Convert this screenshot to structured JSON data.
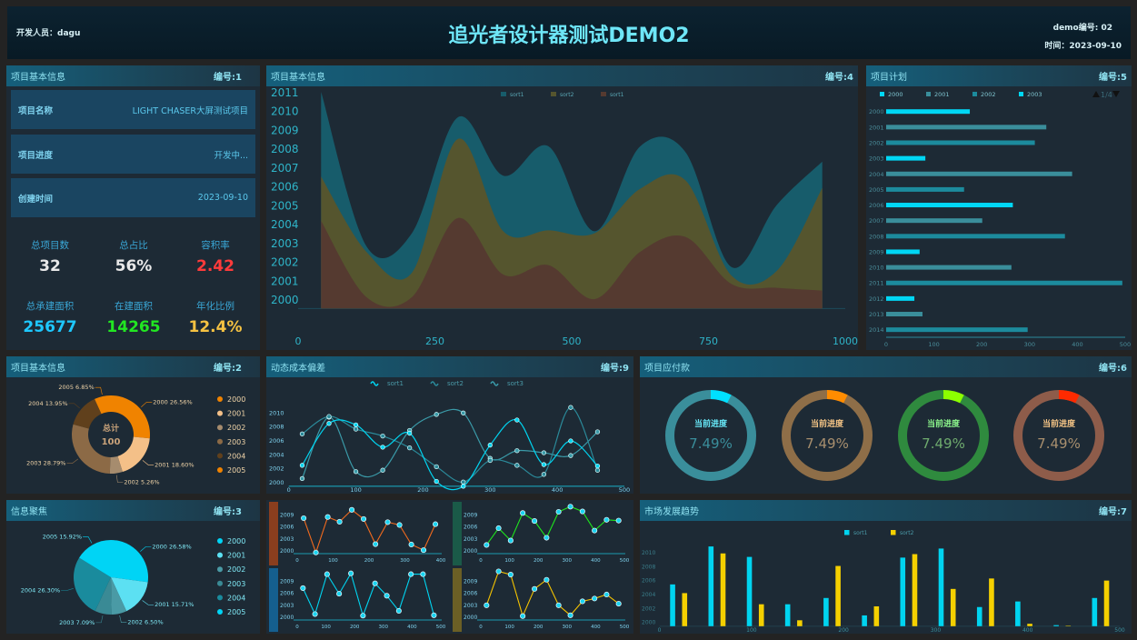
{
  "header": {
    "developer": "开发人员：dagu",
    "title": "追光者设计器测试DEMO2",
    "demo_no": "demo编号: 02",
    "time": "时间：2023-09-10"
  },
  "panels": {
    "p1": {
      "title": "项目基本信息",
      "no": "编号:1"
    },
    "p4": {
      "title": "项目基本信息",
      "no": "编号:4"
    },
    "p5": {
      "title": "项目计划",
      "no": "编号:5"
    },
    "p2": {
      "title": "项目基本信息",
      "no": "编号:2"
    },
    "p9": {
      "title": "动态成本偏差",
      "no": "编号:9"
    },
    "p6": {
      "title": "项目应付款",
      "no": "编号:6"
    },
    "p3": {
      "title": "信息聚焦",
      "no": "编号:3"
    },
    "p7": {
      "title": "市场发展趋势",
      "no": "编号:7"
    }
  },
  "info_rows": [
    {
      "label": "项目名称",
      "value": "LIGHT CHASER大屏测试项目"
    },
    {
      "label": "项目进度",
      "value": "开发中..."
    },
    {
      "label": "创建时间",
      "value": "2023-09-10"
    }
  ],
  "stats": [
    {
      "label": "总项目数",
      "value": "32",
      "color": "#e8e8e8"
    },
    {
      "label": "总占比",
      "value": "56%",
      "color": "#e8e8e8"
    },
    {
      "label": "容积率",
      "value": "2.42",
      "color": "#ff3b3b"
    },
    {
      "label": "总承建面积",
      "value": "25677",
      "color": "#1ec8ff"
    },
    {
      "label": "在建面积",
      "value": "14265",
      "color": "#22e622"
    },
    {
      "label": "年化比例",
      "value": "12.4%",
      "color": "#f5c242"
    }
  ],
  "chart_data": [
    {
      "id": "area",
      "type": "area",
      "xlim": [
        0,
        1000
      ],
      "ylim": [
        1999.5,
        2011
      ],
      "x_ticks": [
        0,
        250,
        500,
        750,
        1000
      ],
      "y_ticks": [
        2000,
        2001,
        2002,
        2003,
        2004,
        2005,
        2006,
        2007,
        2008,
        2009,
        2010,
        2011
      ],
      "x": [
        42,
        125,
        208,
        292,
        375,
        458,
        542,
        625,
        708,
        792,
        875,
        958
      ],
      "legend": "top",
      "series": [
        {
          "name": "sort1",
          "color": "#175c6b",
          "values": [
            2011,
            2002.8,
            2003.5,
            2009.65,
            2006.55,
            2008.1,
            2003.6,
            2008.1,
            2007.8,
            2001.7,
            2005,
            2007.3
          ]
        },
        {
          "name": "sort2",
          "color": "#55552e",
          "values": [
            2006.5,
            2002.5,
            2001.4,
            2008.5,
            2003.6,
            2003.65,
            2003.5,
            2005.85,
            2006.3,
            2001.25,
            2001.5,
            2005.9
          ]
        },
        {
          "name": "sort1",
          "color": "#553a30",
          "values": [
            2004.15,
            2000.1,
            2000.1,
            2004.3,
            2001.3,
            2001.8,
            2000,
            2002.5,
            2003.3,
            2000.8,
            2000.6,
            2000.45
          ]
        }
      ]
    },
    {
      "id": "hbar",
      "type": "bar",
      "orientation": "horizontal",
      "xlim": [
        0,
        500
      ],
      "x_ticks": [
        0,
        100,
        200,
        300,
        400,
        500
      ],
      "categories": [
        "2000",
        "2001",
        "2002",
        "2003",
        "2004",
        "2005",
        "2006",
        "2007",
        "2008",
        "2009",
        "2010",
        "2011",
        "2012",
        "2013",
        "2014"
      ],
      "values": [
        175,
        335,
        311,
        82,
        389,
        163,
        265,
        201,
        374,
        70,
        262,
        494,
        59,
        76,
        296
      ],
      "colors": [
        "#00d7f5",
        "#3a8e9b",
        "#1c8b9d"
      ],
      "legend": [
        "2000",
        "2001",
        "2002",
        "2003"
      ],
      "pager": "1/4"
    },
    {
      "id": "donut",
      "type": "pie",
      "center_title": "总计",
      "center_value": "100",
      "slices": [
        {
          "label": "2000",
          "value": 26.56,
          "text": "2000 26.56%",
          "color": "#f08300"
        },
        {
          "label": "2001",
          "value": 18.6,
          "text": "2001 18.60%",
          "color": "#f4c088"
        },
        {
          "label": "2002",
          "value": 5.26,
          "text": "2002 5.26%",
          "color": "#a68c6e"
        },
        {
          "label": "2003",
          "value": 28.79,
          "text": "2003 28.79%",
          "color": "#8c6a46"
        },
        {
          "label": "2004",
          "value": 13.95,
          "text": "2004 13.95%",
          "color": "#60401c"
        },
        {
          "label": "2005",
          "value": 6.85,
          "text": "2005 6.85%",
          "color": "#f08300"
        }
      ]
    },
    {
      "id": "pie",
      "type": "pie",
      "slices": [
        {
          "label": "2000",
          "value": 26.58,
          "text": "2000 26.58%",
          "color": "#00d4f5"
        },
        {
          "label": "2001",
          "value": 15.71,
          "text": "2001 15.71%",
          "color": "#5ce0f2"
        },
        {
          "label": "2002",
          "value": 6.5,
          "text": "2002 6.50%",
          "color": "#4a9aa5"
        },
        {
          "label": "2003",
          "value": 7.09,
          "text": "2003 7.09%",
          "color": "#3a8a95"
        },
        {
          "label": "2004",
          "value": 26.3,
          "text": "2004 26.30%",
          "color": "#1a8b9d"
        },
        {
          "label": "2005",
          "value": 15.92,
          "text": "2005 15.92%",
          "color": "#00d4f5"
        }
      ]
    },
    {
      "id": "smooth",
      "type": "line",
      "smooth": true,
      "xlim": [
        0,
        500
      ],
      "ylim": [
        1999.5,
        2010
      ],
      "x_ticks": [
        0,
        100,
        200,
        300,
        400,
        500
      ],
      "y_ticks": [
        2000,
        2002,
        2004,
        2006,
        2008,
        2010
      ],
      "x": [
        20,
        60,
        100,
        140,
        180,
        220,
        260,
        300,
        340,
        380,
        420,
        460
      ],
      "series": [
        {
          "name": "sort1",
          "color": "#00d4f0",
          "values": [
            2002.5,
            2008.5,
            2008.3,
            2005.1,
            2007.1,
            2000.2,
            1999.5,
            2005.4,
            2009.0,
            2002.6,
            2006.0,
            2002.4
          ]
        },
        {
          "name": "sort2",
          "color": "#2b8a9a",
          "values": [
            2007,
            2009.5,
            2007.7,
            2006.7,
            2005,
            2002.3,
            2000.1,
            2003.2,
            2002.5,
            2001.2,
            2010.8,
            2001.8
          ]
        },
        {
          "name": "sort3",
          "color": "#3a9aa8",
          "values": [
            2000.6,
            2009.4,
            2001.6,
            2001.8,
            2007.5,
            2009.8,
            2010,
            2003.5,
            2004.6,
            2004.3,
            2003.9,
            2007.3
          ]
        }
      ]
    },
    {
      "id": "mini-a",
      "type": "line",
      "color": "#f06a1e",
      "side": "#8a3e1e",
      "xlim": [
        0,
        400
      ],
      "x_ticks": [
        0,
        100,
        200,
        300,
        400
      ],
      "y_ticks": [
        2000,
        2003,
        2006,
        2009
      ],
      "x": [
        18,
        52,
        85,
        118,
        152,
        185,
        218,
        252,
        285,
        318,
        352,
        385
      ],
      "values": [
        2008.2,
        1999.6,
        2008.5,
        2007.3,
        2010.3,
        2008,
        2001.7,
        2007.2,
        2006.5,
        2001.6,
        2000.2,
        2006.7
      ]
    },
    {
      "id": "mini-b",
      "type": "line",
      "color": "#1ee61e",
      "side": "#1a5a48",
      "xlim": [
        0,
        500
      ],
      "x_ticks": [
        0,
        100,
        200,
        300,
        400,
        500
      ],
      "y_ticks": [
        2000,
        2003,
        2006,
        2009
      ],
      "x": [
        20,
        62,
        104,
        146,
        187,
        229,
        271,
        312,
        354,
        396,
        438,
        480
      ],
      "values": [
        2001.5,
        2005.7,
        2002.6,
        2009.5,
        2007.5,
        2003.3,
        2009.8,
        2011.1,
        2009.9,
        2005.1,
        2007.8,
        2007.6
      ]
    },
    {
      "id": "mini-c",
      "type": "line",
      "color": "#00d4f0",
      "side": "#155f8f",
      "xlim": [
        0,
        500
      ],
      "x_ticks": [
        0,
        100,
        200,
        300,
        400,
        500
      ],
      "y_ticks": [
        2000,
        2003,
        2006,
        2009
      ],
      "x": [
        20,
        62,
        104,
        146,
        187,
        229,
        271,
        312,
        354,
        396,
        438,
        476
      ],
      "values": [
        2007.3,
        2000.8,
        2010.8,
        2005.9,
        2011,
        2000.4,
        2008.5,
        2005.4,
        2001.6,
        2010.8,
        2010.8,
        2000.5
      ]
    },
    {
      "id": "mini-d",
      "type": "line",
      "color": "#f5c400",
      "side": "#6b5f25",
      "xlim": [
        0,
        500
      ],
      "x_ticks": [
        0,
        100,
        200,
        300,
        400,
        500
      ],
      "y_ticks": [
        2000,
        2003,
        2006,
        2009
      ],
      "x": [
        20,
        62,
        104,
        146,
        187,
        229,
        271,
        312,
        354,
        396,
        438,
        480
      ],
      "values": [
        2003,
        2011.5,
        2010.7,
        2000.3,
        2007.1,
        2009.4,
        2003,
        2000.5,
        2004,
        2004.7,
        2005.7,
        2003.4
      ]
    },
    {
      "id": "gbar",
      "type": "bar",
      "xlim": [
        0,
        500
      ],
      "ylim": [
        1999.45,
        2011
      ],
      "x_ticks": [
        0,
        100,
        200,
        300,
        400,
        500
      ],
      "y_ticks": [
        2000,
        2002,
        2004,
        2006,
        2008,
        2010
      ],
      "x": [
        20.8,
        62.5,
        104.2,
        145.8,
        187.5,
        229.2,
        270.8,
        312.5,
        354.2,
        395.8,
        437.5,
        479.2
      ],
      "legend": "top",
      "series": [
        {
          "name": "sort1",
          "color": "#00d4f0",
          "values": [
            2005.45,
            2010.9,
            2009.4,
            2002.6,
            2003.5,
            2001,
            2009.3,
            2010.6,
            2002.2,
            2003,
            1999.6,
            2003.5
          ]
        },
        {
          "name": "sort2",
          "color": "#f5d000",
          "values": [
            2004.2,
            2009.9,
            2002.6,
            2000.3,
            2008.1,
            2002.3,
            2009.8,
            2004.8,
            2006.3,
            1999.8,
            1999.5,
            2006
          ]
        }
      ]
    }
  ],
  "gauges": [
    {
      "label": "当前进度",
      "value": "7.49%",
      "progress": 7.49,
      "track": "#3a8e9b",
      "accent": "#00e0ff",
      "label_color": "#66e5f5",
      "value_color": "#3a8e9b"
    },
    {
      "label": "当前进度",
      "value": "7.49%",
      "progress": 7.49,
      "track": "#8e6e48",
      "accent": "#ff8c00",
      "label_color": "#f3c385",
      "value_color": "#a88f6e"
    },
    {
      "label": "当前进度",
      "value": "7.49%",
      "progress": 7.49,
      "track": "#2f8a3e",
      "accent": "#8cff00",
      "label_color": "#8cf58c",
      "value_color": "#6eaa6e"
    },
    {
      "label": "当前进度",
      "value": "7.49%",
      "progress": 7.49,
      "track": "#8e5c4a",
      "accent": "#ff2a00",
      "label_color": "#f3c385",
      "value_color": "#a88f6e"
    }
  ]
}
